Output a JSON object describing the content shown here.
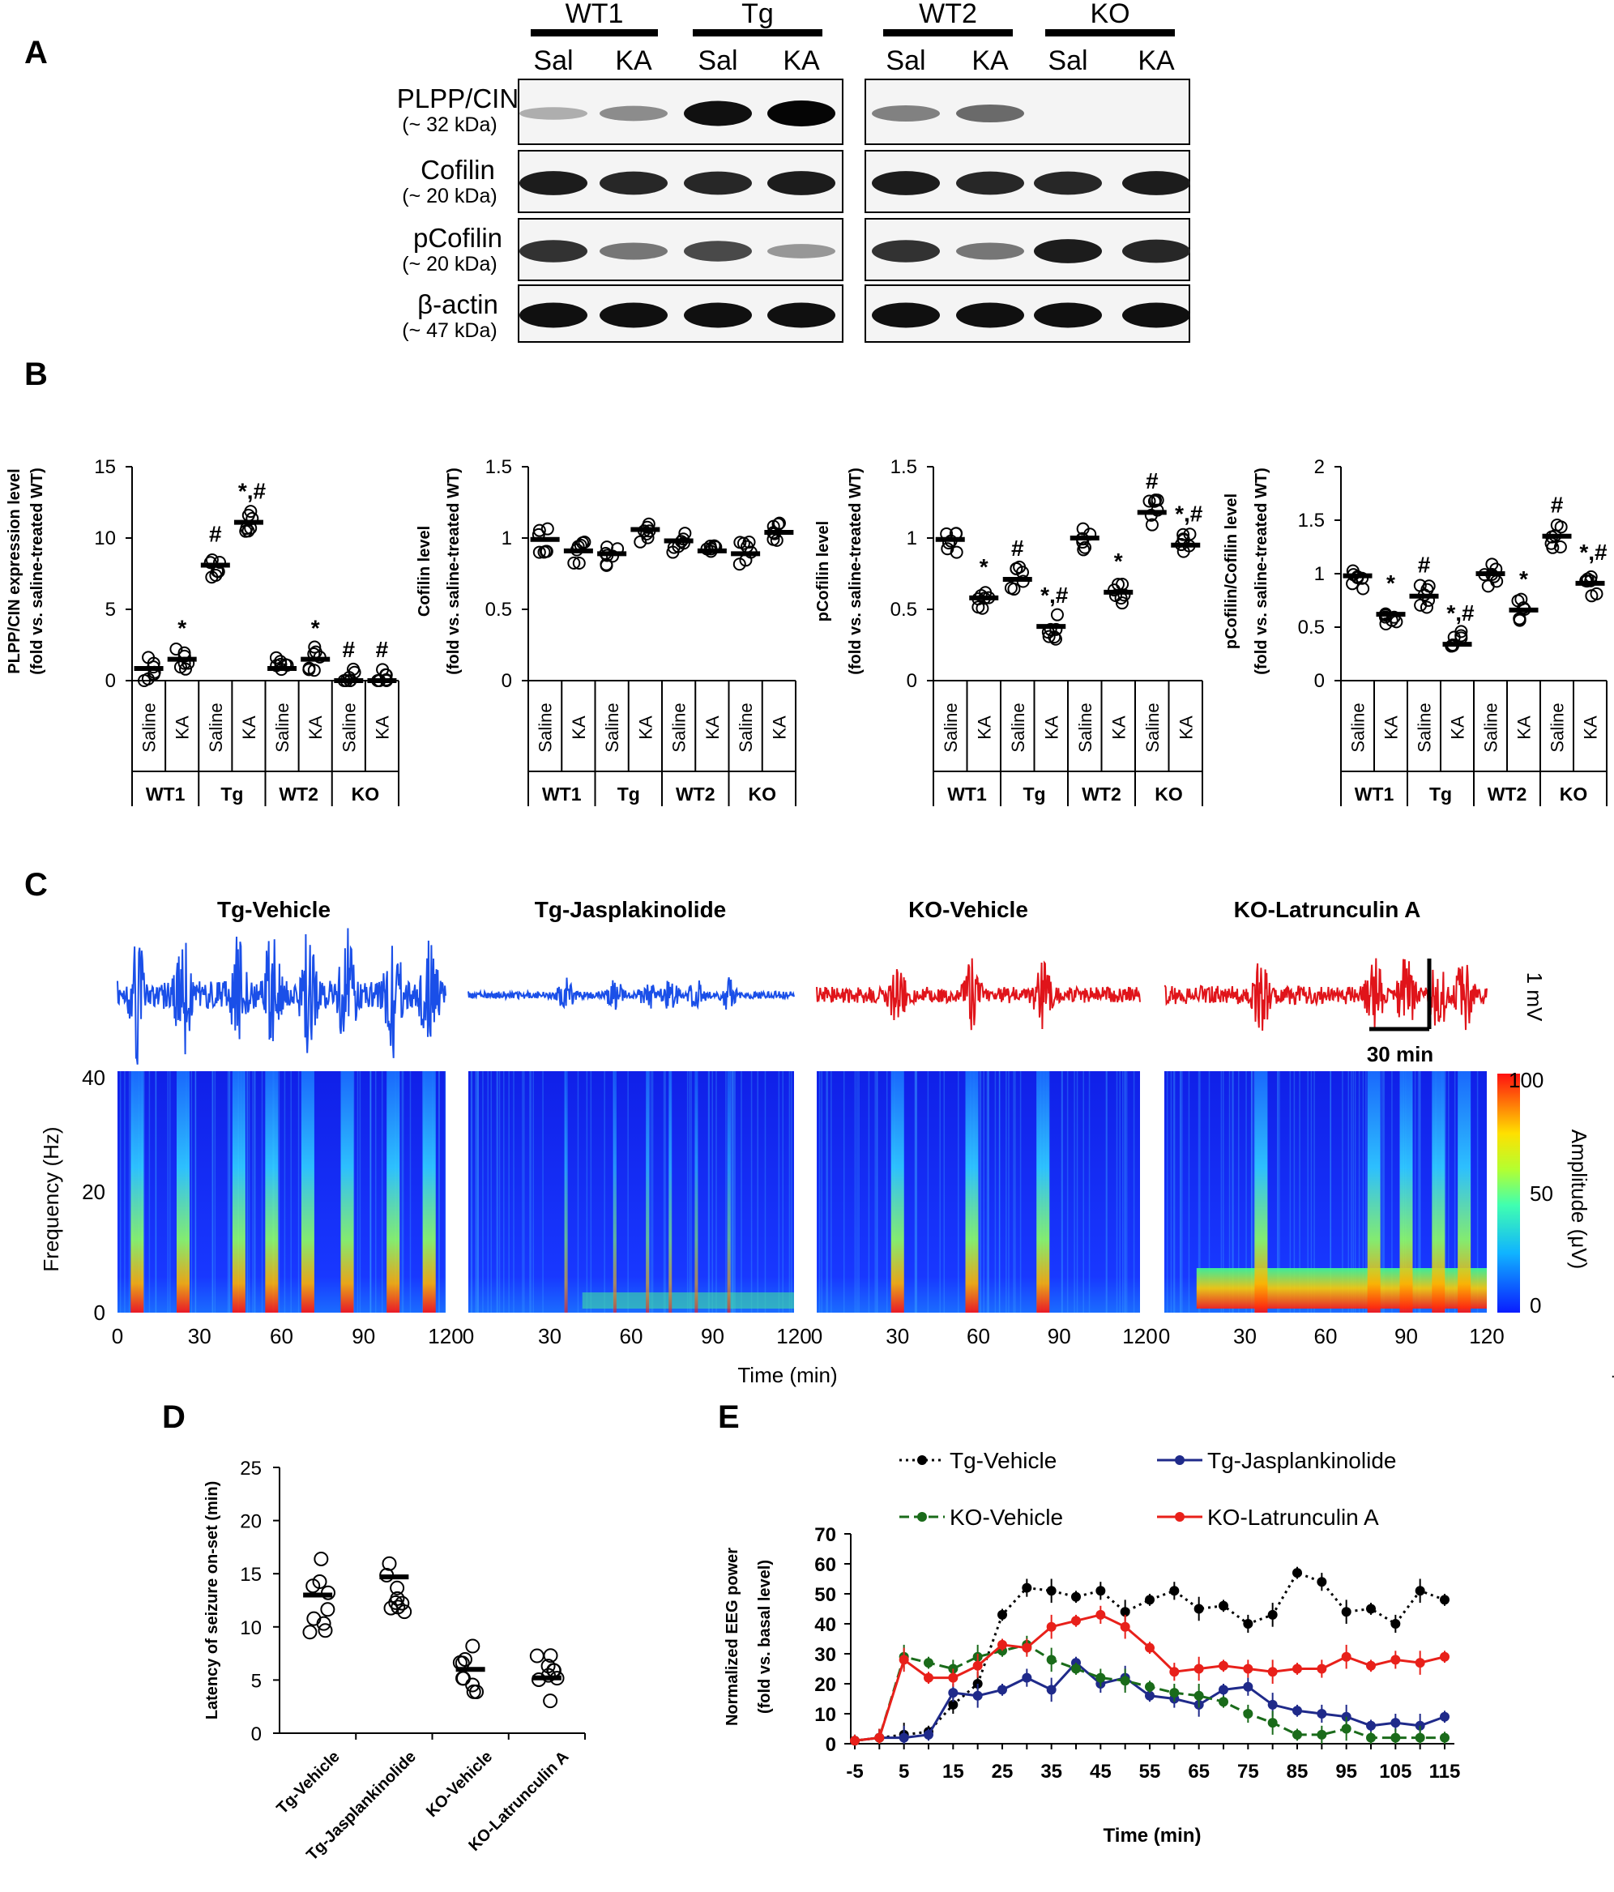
{
  "panels": {
    "a": "A",
    "b": "B",
    "c": "C",
    "d": "D",
    "e": "E"
  },
  "blot": {
    "groups": [
      "WT1",
      "Tg",
      "WT2",
      "KO"
    ],
    "lanes": [
      "Sal",
      "KA",
      "Sal",
      "KA",
      "Sal",
      "KA",
      "Sal",
      "KA"
    ],
    "rows": [
      {
        "protein": "PLPP/CIN",
        "kda": "(~ 32 kDa)",
        "intensity": [
          0.25,
          0.4,
          0.95,
          1.0,
          0.45,
          0.55,
          0,
          0
        ]
      },
      {
        "protein": "Cofilin",
        "kda": "(~ 20 kDa)",
        "intensity": [
          0.9,
          0.85,
          0.85,
          0.9,
          0.9,
          0.85,
          0.85,
          0.9
        ]
      },
      {
        "protein": "pCofilin",
        "kda": "(~ 20 kDa)",
        "intensity": [
          0.8,
          0.5,
          0.7,
          0.35,
          0.8,
          0.5,
          0.9,
          0.85
        ]
      },
      {
        "protein": "β-actin",
        "kda": "(~ 47 kDa)",
        "intensity": [
          0.95,
          0.95,
          0.95,
          0.95,
          0.95,
          0.95,
          0.95,
          0.95
        ]
      }
    ]
  },
  "chart_data": [
    {
      "id": "b1",
      "type": "scatter",
      "ylabel_1": "PLPP/CIN expression level",
      "ylabel_2": "(fold vs. saline-treated WT)",
      "ylim": [
        0,
        15
      ],
      "yticks": [
        "0",
        "5",
        "10",
        "15"
      ],
      "categories": [
        "Saline",
        "KA",
        "Saline",
        "KA",
        "Saline",
        "KA",
        "Saline",
        "KA"
      ],
      "groups": [
        "WT1",
        "Tg",
        "WT2",
        "KO"
      ],
      "means": [
        0.85,
        1.5,
        8.1,
        11.1,
        0.85,
        1.5,
        0.0,
        0.0
      ],
      "markers": [
        "",
        "*",
        "#",
        "*,#",
        "",
        "*",
        "#",
        "#"
      ]
    },
    {
      "id": "b2",
      "type": "scatter",
      "ylabel_1": "Cofilin level",
      "ylabel_2": "(fold vs. saline-treated WT)",
      "ylim": [
        0,
        1.5
      ],
      "yticks": [
        "0",
        "0.5",
        "1",
        "1.5"
      ],
      "categories": [
        "Saline",
        "KA",
        "Saline",
        "KA",
        "Saline",
        "KA",
        "Saline",
        "KA"
      ],
      "groups": [
        "WT1",
        "Tg",
        "WT2",
        "KO"
      ],
      "means": [
        0.99,
        0.91,
        0.89,
        1.06,
        0.98,
        0.91,
        0.89,
        1.04
      ],
      "markers": [
        "",
        "",
        "",
        "",
        "",
        "",
        "",
        ""
      ]
    },
    {
      "id": "b3",
      "type": "scatter",
      "ylabel_1": "pCofilin level",
      "ylabel_2": "(fold vs. saline-treated WT)",
      "ylim": [
        0,
        1.5
      ],
      "yticks": [
        "0",
        "0.5",
        "1",
        "1.5"
      ],
      "categories": [
        "Saline",
        "KA",
        "Saline",
        "KA",
        "Saline",
        "KA",
        "Saline",
        "KA"
      ],
      "groups": [
        "WT1",
        "Tg",
        "WT2",
        "KO"
      ],
      "means": [
        0.99,
        0.58,
        0.71,
        0.38,
        1.0,
        0.62,
        1.18,
        0.95
      ],
      "markers": [
        "",
        "*",
        "#",
        "*,#",
        "",
        "*",
        "#",
        "*,#"
      ]
    },
    {
      "id": "b4",
      "type": "scatter",
      "ylabel_1": "pCofilin/Cofilin level",
      "ylabel_2": "(fold vs. saline-treated WT)",
      "ylim": [
        0,
        2
      ],
      "yticks": [
        "0",
        "0.5",
        "1",
        "1.5",
        "2"
      ],
      "categories": [
        "Saline",
        "KA",
        "Saline",
        "KA",
        "Saline",
        "KA",
        "Saline",
        "KA"
      ],
      "groups": [
        "WT1",
        "Tg",
        "WT2",
        "KO"
      ],
      "means": [
        0.98,
        0.62,
        0.79,
        0.34,
        1.0,
        0.66,
        1.35,
        0.91
      ],
      "markers": [
        "",
        "*",
        "#",
        "*,#",
        "",
        "*",
        "#",
        "*,#"
      ]
    },
    {
      "id": "c",
      "type": "heatmap",
      "conditions": [
        "Tg-Vehicle",
        "Tg-Jasplakinolide",
        "KO-Vehicle",
        "KO-Latrunculin A"
      ],
      "ylabel": "Frequency (Hz)",
      "xlabel": "Time (min)",
      "ylim": [
        0,
        40
      ],
      "yticks": [
        "0",
        "20",
        "40"
      ],
      "xlim": [
        0,
        120
      ],
      "xticks": [
        "0",
        "30",
        "60",
        "90",
        "120"
      ],
      "colorbar_label": "Amplitude (μV)",
      "colorbar_ticks": [
        "0",
        "50",
        "100"
      ],
      "scale_v": "1 mV",
      "scale_t": "30 min"
    },
    {
      "id": "d",
      "type": "scatter",
      "ylabel": "Latency of seizure on-set (min)",
      "ylim": [
        0,
        25
      ],
      "yticks": [
        "0",
        "5",
        "10",
        "15",
        "20",
        "25"
      ],
      "categories": [
        "Tg-Vehicle",
        "Tg-Jasplankinolide",
        "KO-Vehicle",
        "KO-Latrunculin A"
      ],
      "means": [
        13.0,
        14.7,
        6.0,
        5.2
      ]
    },
    {
      "id": "e",
      "type": "line",
      "ylabel_1": "Normalized EEG power",
      "ylabel_2": "(fold vs. basal level)",
      "xlabel": "Time (min)",
      "x": [
        -5,
        0,
        5,
        10,
        15,
        20,
        25,
        30,
        35,
        40,
        45,
        50,
        55,
        60,
        65,
        70,
        75,
        80,
        85,
        90,
        95,
        100,
        105,
        110,
        115
      ],
      "xticks": [
        "-5",
        "5",
        "15",
        "25",
        "35",
        "45",
        "55",
        "65",
        "75",
        "85",
        "95",
        "105",
        "115"
      ],
      "ylim": [
        0,
        70
      ],
      "yticks": [
        "0",
        "10",
        "20",
        "30",
        "40",
        "50",
        "60",
        "70"
      ],
      "series": [
        {
          "name": "Tg-Vehicle",
          "color": "#000000",
          "dash": "3,5",
          "values": [
            1,
            2,
            3,
            4,
            13,
            20,
            43,
            52,
            51,
            49,
            51,
            44,
            48,
            51,
            45,
            46,
            40,
            43,
            57,
            54,
            44,
            45,
            40,
            51,
            48
          ]
        },
        {
          "name": "Tg-Jasplankinolide",
          "color": "#1f2a8a",
          "dash": "",
          "values": [
            1,
            2,
            2,
            3,
            17,
            16,
            18,
            22,
            18,
            27,
            20,
            22,
            16,
            15,
            13,
            18,
            19,
            13,
            11,
            10,
            9,
            6,
            7,
            6,
            9
          ]
        },
        {
          "name": "KO-Vehicle",
          "color": "#1a6b1a",
          "dash": "12,6",
          "values": [
            1,
            2,
            29,
            27,
            25,
            29,
            31,
            33,
            28,
            25,
            22,
            21,
            19,
            17,
            16,
            14,
            10,
            7,
            3,
            3,
            5,
            2,
            2,
            2,
            2
          ]
        },
        {
          "name": "KO-Latrunculin A",
          "color": "#e8201a",
          "dash": "",
          "values": [
            1,
            2,
            28,
            22,
            22,
            26,
            33,
            32,
            39,
            41,
            43,
            39,
            32,
            24,
            25,
            26,
            25,
            24,
            25,
            25,
            29,
            26,
            28,
            27,
            29
          ]
        }
      ]
    }
  ]
}
